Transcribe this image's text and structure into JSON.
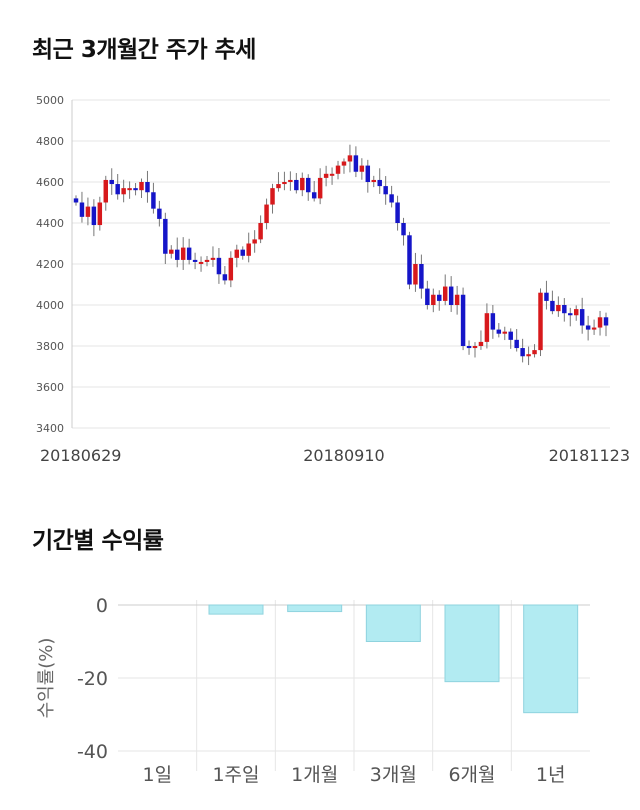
{
  "titles": {
    "price_trend": "최근 3개월간 주가 추세",
    "period_returns": "기간별 수익률"
  },
  "colors": {
    "up": "#d7191c",
    "down": "#1515c8",
    "bar_fill": "#b2ebf2",
    "bar_stroke": "#8fd3de",
    "grid": "#e6e6e6"
  },
  "chart_data": [
    {
      "type": "candlestick",
      "title": "최근 3개월간 주가 추세",
      "ylim": [
        3400,
        5000
      ],
      "yticks": [
        3400,
        3600,
        3800,
        4000,
        4200,
        4400,
        4600,
        4800,
        5000
      ],
      "xtick_labels": [
        {
          "index": 0,
          "label": "20180629"
        },
        {
          "index": 45,
          "label": "20180910"
        },
        {
          "index": 89,
          "label": "20181123"
        }
      ],
      "grid": true,
      "close": [
        4500,
        4430,
        4480,
        4390,
        4500,
        4610,
        4590,
        4540,
        4570,
        4570,
        4560,
        4600,
        4550,
        4470,
        4420,
        4250,
        4270,
        4220,
        4280,
        4220,
        4210,
        4210,
        4220,
        4230,
        4150,
        4120,
        4230,
        4270,
        4240,
        4300,
        4320,
        4400,
        4490,
        4570,
        4590,
        4600,
        4610,
        4560,
        4620,
        4550,
        4520,
        4620,
        4640,
        4640,
        4680,
        4700,
        4730,
        4650,
        4680,
        4600,
        4610,
        4580,
        4540,
        4500,
        4400,
        4340,
        4100,
        4200,
        4080,
        4000,
        4050,
        4020,
        4090,
        4000,
        4050,
        3800,
        3790,
        3800,
        3820,
        3960,
        3880,
        3860,
        3870,
        3830,
        3790,
        3750,
        3760,
        3780,
        4060,
        4020,
        3970,
        4000,
        3960,
        3950,
        3980,
        3900,
        3880,
        3890,
        3940,
        3900
      ],
      "note": "approximate daily closes read from the chart; open/high/low drawn around these"
    },
    {
      "type": "bar",
      "title": "기간별 수익률",
      "ylabel": "수익률(%)",
      "categories": [
        "1일",
        "1주일",
        "1개월",
        "3개월",
        "6개월",
        "1년"
      ],
      "values": [
        0,
        -2.5,
        -1.8,
        -10,
        -21,
        -29.5
      ],
      "ylim": [
        -40,
        0
      ],
      "yticks": [
        0,
        -20,
        -40
      ],
      "grid": true
    }
  ]
}
